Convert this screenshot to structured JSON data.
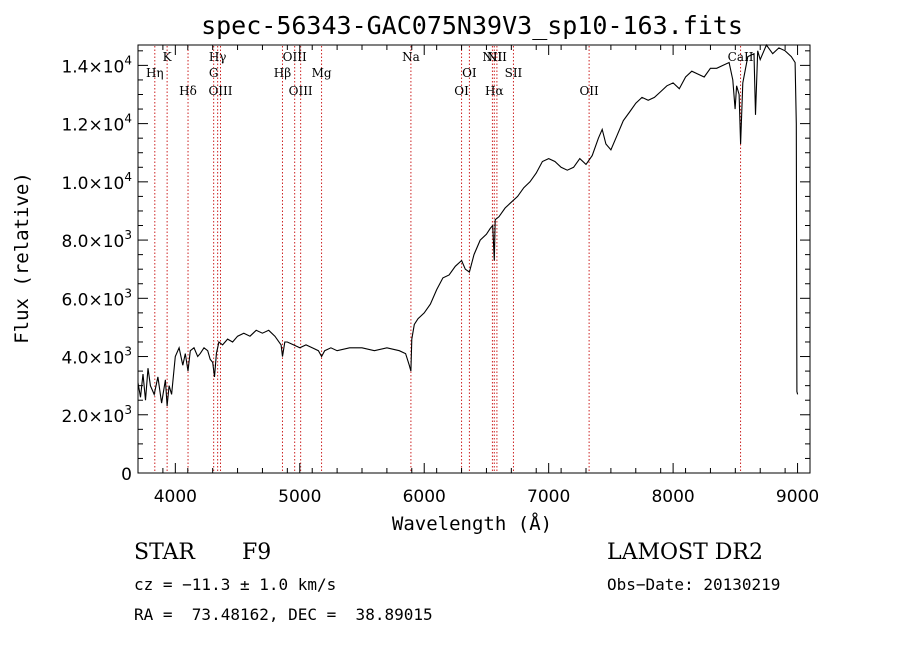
{
  "chart_data": {
    "type": "line",
    "title": "spec-56343-GAC075N39V3_sp10-163.fits",
    "xlabel": "Wavelength (Å)",
    "ylabel": "Flux (relative)",
    "xlim": [
      3700,
      9100
    ],
    "ylim": [
      0,
      14700
    ],
    "x_ticks": [
      {
        "value": 4000,
        "label": "4000"
      },
      {
        "value": 5000,
        "label": "5000"
      },
      {
        "value": 6000,
        "label": "6000"
      },
      {
        "value": 7000,
        "label": "7000"
      },
      {
        "value": 8000,
        "label": "8000"
      },
      {
        "value": 9000,
        "label": "9000"
      }
    ],
    "y_ticks": [
      {
        "value": 0,
        "mantissa": "0",
        "exp": ""
      },
      {
        "value": 2000,
        "mantissa": "2.0×10",
        "exp": "3"
      },
      {
        "value": 4000,
        "mantissa": "4.0×10",
        "exp": "3"
      },
      {
        "value": 6000,
        "mantissa": "6.0×10",
        "exp": "3"
      },
      {
        "value": 8000,
        "mantissa": "8.0×10",
        "exp": "3"
      },
      {
        "value": 10000,
        "mantissa": "1.0×10",
        "exp": "4"
      },
      {
        "value": 12000,
        "mantissa": "1.2×10",
        "exp": "4"
      },
      {
        "value": 14000,
        "mantissa": "1.4×10",
        "exp": "4"
      }
    ],
    "grid": false,
    "series": [
      {
        "x": [
          3700,
          3720,
          3740,
          3760,
          3780,
          3800,
          3830,
          3860,
          3890,
          3920,
          3934,
          3950,
          3970,
          4000,
          4030,
          4060,
          4080,
          4102,
          4120,
          4150,
          4180,
          4200,
          4230,
          4260,
          4280,
          4300,
          4315,
          4330,
          4350,
          4380,
          4420,
          4460,
          4500,
          4550,
          4600,
          4650,
          4700,
          4750,
          4800,
          4850,
          4861,
          4880,
          4900,
          4950,
          5000,
          5050,
          5100,
          5150,
          5175,
          5200,
          5250,
          5300,
          5400,
          5500,
          5600,
          5700,
          5800,
          5850,
          5880,
          5893,
          5900,
          5920,
          5950,
          6000,
          6050,
          6100,
          6150,
          6200,
          6250,
          6300,
          6330,
          6363,
          6400,
          6450,
          6500,
          6530,
          6550,
          6563,
          6570,
          6600,
          6650,
          6700,
          6750,
          6800,
          6850,
          6900,
          6950,
          7000,
          7050,
          7100,
          7150,
          7200,
          7250,
          7300,
          7350,
          7400,
          7430,
          7460,
          7500,
          7550,
          7600,
          7650,
          7700,
          7750,
          7800,
          7850,
          7900,
          7950,
          8000,
          8050,
          8100,
          8150,
          8200,
          8250,
          8300,
          8350,
          8400,
          8450,
          8480,
          8498,
          8510,
          8530,
          8542,
          8560,
          8600,
          8650,
          8662,
          8680,
          8700,
          8750,
          8800,
          8850,
          8900,
          8950,
          8980,
          8990,
          8995,
          9000
        ],
        "y": [
          3100,
          2600,
          3400,
          2500,
          3600,
          3000,
          2700,
          3300,
          2400,
          3200,
          2300,
          3000,
          2700,
          4000,
          4300,
          3700,
          4100,
          3500,
          4200,
          4300,
          4000,
          4100,
          4300,
          4200,
          3900,
          3800,
          3300,
          4100,
          4500,
          4400,
          4600,
          4500,
          4700,
          4800,
          4700,
          4900,
          4800,
          4900,
          4700,
          4400,
          4000,
          4500,
          4500,
          4400,
          4300,
          4400,
          4300,
          4200,
          4000,
          4200,
          4300,
          4200,
          4300,
          4300,
          4200,
          4300,
          4200,
          4100,
          3700,
          3500,
          4600,
          5100,
          5300,
          5500,
          5800,
          6300,
          6700,
          6800,
          7100,
          7300,
          7000,
          6900,
          7500,
          8000,
          8200,
          8400,
          8500,
          7300,
          8700,
          8800,
          9100,
          9300,
          9500,
          9800,
          10000,
          10300,
          10700,
          10800,
          10700,
          10500,
          10400,
          10500,
          10800,
          10600,
          10900,
          11500,
          11800,
          11300,
          11100,
          11600,
          12100,
          12400,
          12700,
          12900,
          12800,
          12900,
          13100,
          13300,
          13400,
          13200,
          13600,
          13800,
          13700,
          13600,
          13900,
          13900,
          14000,
          14100,
          13500,
          12500,
          13300,
          13000,
          11300,
          13400,
          14300,
          14400,
          12300,
          14500,
          14200,
          14700,
          14400,
          14600,
          14500,
          14300,
          14100,
          12000,
          2800,
          2700
        ]
      }
    ],
    "lines": [
      {
        "x": 3835,
        "label": "Hη",
        "row": 2
      },
      {
        "x": 3934,
        "label": "K",
        "row": 1
      },
      {
        "x": 4102,
        "label": "Hδ",
        "row": 3
      },
      {
        "x": 4308,
        "label": "G",
        "row": 2
      },
      {
        "x": 4340,
        "label": "Hγ",
        "row": 1
      },
      {
        "x": 4363,
        "label": "OIII",
        "row": 3
      },
      {
        "x": 4861,
        "label": "Hβ",
        "row": 2
      },
      {
        "x": 4959,
        "label": "OIII",
        "row": 1
      },
      {
        "x": 5007,
        "label": "OIII",
        "row": 3
      },
      {
        "x": 5175,
        "label": "Mg",
        "row": 2
      },
      {
        "x": 5893,
        "label": "Na",
        "row": 1
      },
      {
        "x": 6300,
        "label": "OI",
        "row": 3
      },
      {
        "x": 6363,
        "label": "OI",
        "row": 2
      },
      {
        "x": 6548,
        "label": "NII",
        "row": 1
      },
      {
        "x": 6563,
        "label": "Hα",
        "row": 3
      },
      {
        "x": 6584,
        "label": "NII",
        "row": 1
      },
      {
        "x": 6717,
        "label": "SII",
        "row": 2
      },
      {
        "x": 7325,
        "label": "OII",
        "row": 3
      },
      {
        "x": 8542,
        "label": "CaII",
        "row": 1
      }
    ]
  },
  "footer": {
    "object_type": "STAR",
    "subclass": "F9",
    "survey": "LAMOST DR2",
    "cz": "cz = −11.3 ± 1.0 km/s",
    "obs_date": "Obs−Date: 20130219",
    "coords": "RA =  73.48162, DEC =  38.89015"
  },
  "colors": {
    "spectrum": "#000000",
    "line_markers": "#cc2222",
    "axes": "#000000"
  }
}
